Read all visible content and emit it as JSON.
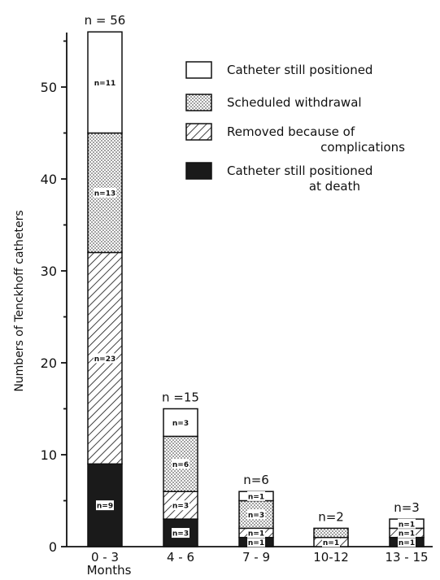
{
  "chart_data": {
    "type": "bar",
    "stacked": true,
    "categories": [
      "0 - 3",
      "4 - 6",
      "7 - 9",
      "10-12",
      "13 - 15"
    ],
    "x_unit_label": "Months",
    "ylabel": "Numbers of Tenckhoff catheters",
    "ylim": [
      0,
      56
    ],
    "yticks": [
      0,
      10,
      20,
      30,
      40,
      50
    ],
    "grid": false,
    "legend_position": "top-right",
    "totals": [
      56,
      15,
      6,
      2,
      3
    ],
    "total_labels": [
      "n = 56",
      "n =15",
      "n=6",
      "n=2",
      "n=3"
    ],
    "series": [
      {
        "name": "Catheter still positioned at death",
        "legend_lines": [
          "Catheter still positioned",
          "at death"
        ],
        "pattern": "solid-black",
        "values": [
          9,
          3,
          1,
          0,
          1
        ],
        "labels": [
          "n=9",
          "n=3",
          "n=1",
          "",
          "n=1"
        ]
      },
      {
        "name": "Removed because of complications",
        "legend_lines": [
          "Removed because of",
          "complications"
        ],
        "pattern": "hatched",
        "values": [
          23,
          3,
          1,
          1,
          1
        ],
        "labels": [
          "n=23",
          "n=3",
          "n=1",
          "n=1",
          "n=1"
        ]
      },
      {
        "name": "Scheduled withdrawal",
        "legend_lines": [
          "Scheduled withdrawal"
        ],
        "pattern": "dotted",
        "values": [
          13,
          6,
          3,
          1,
          0
        ],
        "labels": [
          "n=13",
          "n=6",
          "n=3",
          "",
          ""
        ]
      },
      {
        "name": "Catheter still positioned",
        "legend_lines": [
          "Catheter still positioned"
        ],
        "pattern": "white",
        "values": [
          11,
          3,
          1,
          0,
          1
        ],
        "labels": [
          "n=11",
          "n=3",
          "n=1",
          "",
          "n=1"
        ]
      }
    ],
    "legend_order": [
      "Catheter still positioned",
      "Scheduled withdrawal",
      "Removed because of complications",
      "Catheter still positioned at death"
    ]
  }
}
